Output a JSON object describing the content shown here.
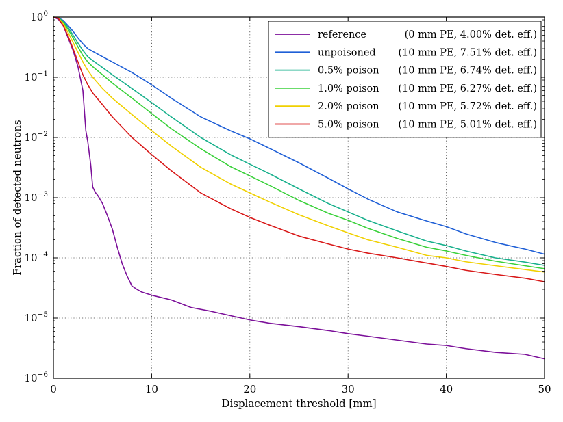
{
  "chart_data": {
    "type": "line",
    "title": "",
    "xlabel": "Displacement threshold [mm]",
    "ylabel": "Fraction of detected neutrons",
    "xlim": [
      0,
      50
    ],
    "ylim": [
      1e-06,
      1
    ],
    "yscale": "log",
    "grid": true,
    "legend_position": "top-right",
    "x_ticks": [
      {
        "value": 0,
        "label": "0"
      },
      {
        "value": 10,
        "label": "10"
      },
      {
        "value": 20,
        "label": "20"
      },
      {
        "value": 30,
        "label": "30"
      },
      {
        "value": 40,
        "label": "40"
      },
      {
        "value": 50,
        "label": "50"
      }
    ],
    "y_ticks": [
      {
        "value": 1,
        "base": "10",
        "exp": "0"
      },
      {
        "value": 0.1,
        "base": "10",
        "exp": "−1"
      },
      {
        "value": 0.01,
        "base": "10",
        "exp": "−2"
      },
      {
        "value": 0.001,
        "base": "10",
        "exp": "−3"
      },
      {
        "value": 0.0001,
        "base": "10",
        "exp": "−4"
      },
      {
        "value": 1e-05,
        "base": "10",
        "exp": "−5"
      },
      {
        "value": 1e-06,
        "base": "10",
        "exp": "−6"
      }
    ],
    "series": [
      {
        "name": "reference",
        "detail": "(0 mm PE, 4.00% det. eff.)",
        "color": "#7b0f99",
        "x": [
          0,
          0.5,
          1,
          1.5,
          2,
          2.5,
          3,
          3.3,
          3.5,
          3.8,
          4,
          4.3,
          4.5,
          5,
          5.5,
          6,
          6.5,
          7,
          7.5,
          8,
          8.5,
          9,
          10,
          12,
          14,
          16,
          18,
          20,
          22,
          25,
          28,
          30,
          32,
          35,
          38,
          40,
          42,
          45,
          48,
          50
        ],
        "y": [
          1,
          0.92,
          0.72,
          0.45,
          0.28,
          0.15,
          0.06,
          0.013,
          0.0085,
          0.0035,
          0.0015,
          0.0012,
          0.0011,
          0.0008,
          0.0005,
          0.0003,
          0.00015,
          8e-05,
          5e-05,
          3.4e-05,
          3e-05,
          2.7e-05,
          2.4e-05,
          2e-05,
          1.5e-05,
          1.3e-05,
          1.1e-05,
          9.3e-06,
          8.2e-06,
          7.2e-06,
          6.2e-06,
          5.5e-06,
          5e-06,
          4.3e-06,
          3.7e-06,
          3.5e-06,
          3.1e-06,
          2.7e-06,
          2.5e-06,
          2.1e-06
        ]
      },
      {
        "name": "unpoisoned",
        "detail": "(10 mm PE, 7.51% det. eff.)",
        "color": "#1f5fd6",
        "x": [
          0,
          0.5,
          1,
          1.5,
          2,
          2.5,
          3,
          3.5,
          4,
          5,
          6,
          8,
          10,
          12,
          15,
          18,
          20,
          22,
          25,
          28,
          30,
          32,
          35,
          38,
          40,
          42,
          45,
          48,
          50
        ],
        "y": [
          1,
          0.98,
          0.88,
          0.72,
          0.58,
          0.45,
          0.36,
          0.3,
          0.27,
          0.22,
          0.18,
          0.12,
          0.075,
          0.045,
          0.022,
          0.013,
          0.0095,
          0.0066,
          0.0038,
          0.0021,
          0.0014,
          0.00095,
          0.00058,
          0.00041,
          0.00033,
          0.00025,
          0.00018,
          0.00014,
          0.000115
        ]
      },
      {
        "name": "0.5% poison",
        "detail": "(10 mm PE, 6.74% det. eff.)",
        "color": "#18b08c",
        "x": [
          0,
          0.5,
          1,
          1.5,
          2,
          2.5,
          3,
          3.5,
          4,
          5,
          6,
          8,
          10,
          12,
          15,
          18,
          20,
          22,
          25,
          28,
          30,
          32,
          35,
          38,
          40,
          42,
          45,
          48,
          50
        ],
        "y": [
          1,
          0.97,
          0.85,
          0.67,
          0.5,
          0.37,
          0.28,
          0.22,
          0.19,
          0.145,
          0.11,
          0.065,
          0.038,
          0.022,
          0.01,
          0.0052,
          0.0036,
          0.0025,
          0.0014,
          0.0008,
          0.00058,
          0.00042,
          0.00028,
          0.00019,
          0.00016,
          0.00013,
          0.0001,
          8.5e-05,
          7.5e-05
        ]
      },
      {
        "name": "1.0% poison",
        "detail": "(10 mm PE, 6.27% det. eff.)",
        "color": "#3ad13a",
        "x": [
          0,
          0.5,
          1,
          1.5,
          2,
          2.5,
          3,
          3.5,
          4,
          5,
          6,
          8,
          10,
          12,
          15,
          18,
          20,
          22,
          25,
          28,
          30,
          32,
          35,
          38,
          40,
          42,
          45,
          48,
          50
        ],
        "y": [
          1,
          0.97,
          0.82,
          0.62,
          0.45,
          0.32,
          0.23,
          0.18,
          0.15,
          0.11,
          0.08,
          0.045,
          0.025,
          0.014,
          0.0065,
          0.0033,
          0.0023,
          0.0016,
          0.0009,
          0.00055,
          0.00042,
          0.00031,
          0.00021,
          0.00015,
          0.00013,
          0.00011,
          8.8e-05,
          7.4e-05,
          6.6e-05
        ]
      },
      {
        "name": "2.0% poison",
        "detail": "(10 mm PE, 5.72% det. eff.)",
        "color": "#f0d000",
        "x": [
          0,
          0.5,
          1,
          1.5,
          2,
          2.5,
          3,
          3.5,
          4,
          5,
          6,
          8,
          10,
          12,
          15,
          18,
          20,
          22,
          25,
          28,
          30,
          32,
          35,
          38,
          40,
          42,
          45,
          48,
          50
        ],
        "y": [
          1,
          0.96,
          0.78,
          0.55,
          0.38,
          0.26,
          0.18,
          0.13,
          0.1,
          0.065,
          0.045,
          0.024,
          0.013,
          0.0072,
          0.0032,
          0.0017,
          0.0012,
          0.00085,
          0.00052,
          0.00034,
          0.00026,
          0.0002,
          0.00015,
          0.00011,
          0.0001,
          8.6e-05,
          7.4e-05,
          6.4e-05,
          5.8e-05
        ]
      },
      {
        "name": "5.0% poison",
        "detail": "(10 mm PE, 5.01% det. eff.)",
        "color": "#d81818",
        "x": [
          0,
          0.5,
          1,
          1.5,
          2,
          2.5,
          3,
          3.5,
          4,
          5,
          6,
          8,
          10,
          12,
          15,
          18,
          20,
          22,
          25,
          28,
          30,
          32,
          35,
          38,
          40,
          42,
          45,
          48,
          50
        ],
        "y": [
          1,
          0.95,
          0.72,
          0.48,
          0.3,
          0.18,
          0.11,
          0.075,
          0.055,
          0.035,
          0.022,
          0.01,
          0.0052,
          0.0028,
          0.0012,
          0.00066,
          0.00047,
          0.00035,
          0.00023,
          0.00017,
          0.00014,
          0.00012,
          0.0001,
          8.2e-05,
          7.2e-05,
          6.2e-05,
          5.3e-05,
          4.6e-05,
          4e-05
        ]
      }
    ]
  }
}
